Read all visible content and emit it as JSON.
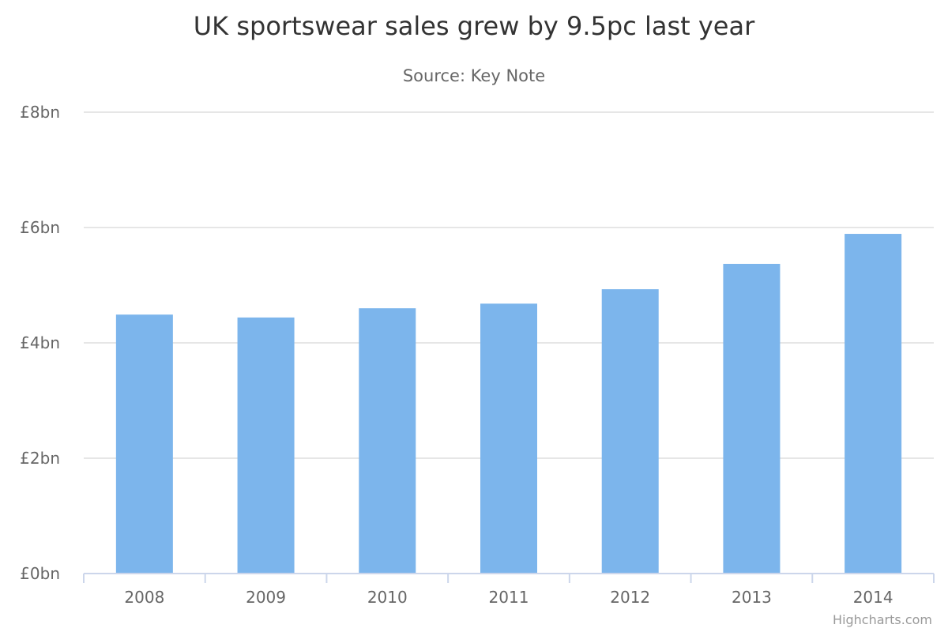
{
  "chart_data": {
    "type": "bar",
    "title": "UK sportswear sales grew by 9.5pc last year",
    "subtitle": "Source: Key Note",
    "categories": [
      "2008",
      "2009",
      "2010",
      "2011",
      "2012",
      "2013",
      "2014"
    ],
    "values": [
      4.49,
      4.44,
      4.6,
      4.68,
      4.93,
      5.37,
      5.89
    ],
    "unit": "£bn",
    "ylim": [
      0,
      8
    ],
    "yticks": [
      0,
      2,
      4,
      6,
      8
    ],
    "ytick_labels": [
      "£0bn",
      "£2bn",
      "£4bn",
      "£6bn",
      "£8bn"
    ],
    "xlabel": "",
    "ylabel": "",
    "grid": true,
    "legend": "none",
    "bar_color": "#7cb5ec",
    "credits": "Highcharts.com"
  }
}
